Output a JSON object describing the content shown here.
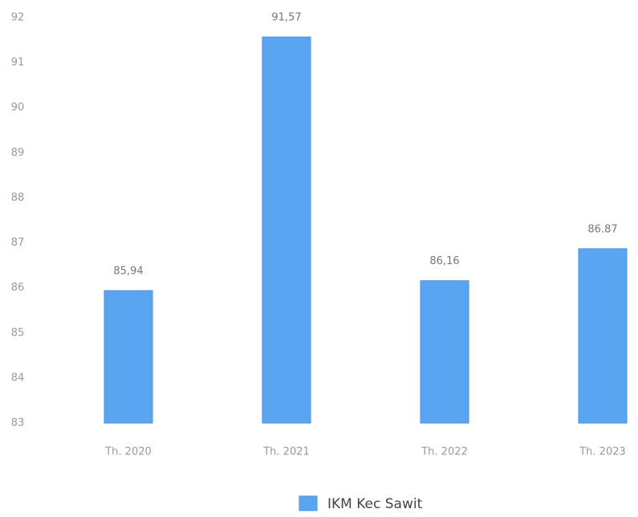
{
  "chart_data": {
    "type": "bar",
    "categories": [
      "Th. 2020",
      "Th. 2021",
      "Th. 2022",
      "Th. 2023"
    ],
    "series": [
      {
        "name": "IKM Kec Sawit",
        "color": "#5aa5f2",
        "values": [
          85.94,
          91.57,
          86.16,
          86.87
        ],
        "value_labels": [
          "85,94",
          "91,57",
          "86,16",
          "86.87"
        ]
      }
    ],
    "ylim": [
      83,
      92
    ],
    "yticks": [
      83,
      84,
      85,
      86,
      87,
      88,
      89,
      90,
      91,
      92
    ],
    "grid": false
  }
}
